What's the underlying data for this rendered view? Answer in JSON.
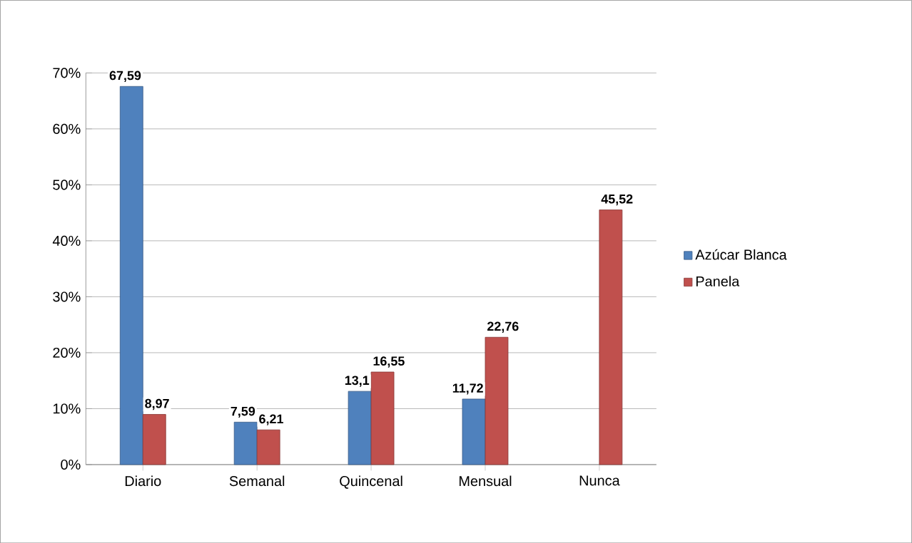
{
  "chart_data": {
    "type": "bar",
    "categories": [
      "Diario",
      "Semanal",
      "Quincenal",
      "Mensual",
      "Nunca"
    ],
    "series": [
      {
        "name": "Azúcar Blanca",
        "color": "#4f81bd",
        "values": [
          67.59,
          7.59,
          13.1,
          11.72,
          null
        ],
        "value_labels": [
          "67,59",
          "7,59",
          "13,1",
          "11,72",
          null
        ]
      },
      {
        "name": "Panela",
        "color": "#c0504d",
        "values": [
          8.97,
          6.21,
          16.55,
          22.76,
          45.52
        ],
        "value_labels": [
          "8,97",
          "6,21",
          "16,55",
          "22,76",
          "45,52"
        ]
      }
    ],
    "ylim": [
      0,
      70
    ],
    "yticks": [
      {
        "value": 0,
        "label": "0%"
      },
      {
        "value": 10,
        "label": "10%"
      },
      {
        "value": 20,
        "label": "20%"
      },
      {
        "value": 30,
        "label": "30%"
      },
      {
        "value": 40,
        "label": "40%"
      },
      {
        "value": 50,
        "label": "50%"
      },
      {
        "value": 60,
        "label": "60%"
      },
      {
        "value": 70,
        "label": "70%"
      }
    ],
    "grid": "y",
    "legend": "right"
  }
}
